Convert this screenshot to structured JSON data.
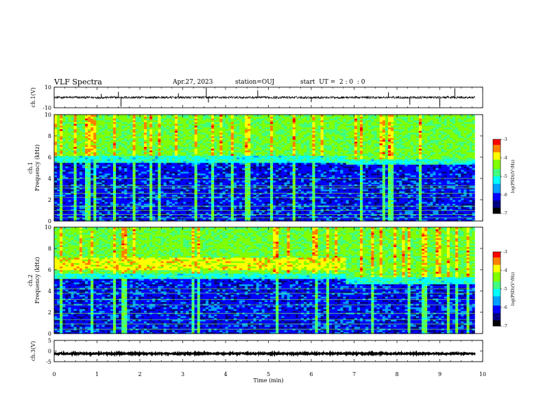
{
  "header": {
    "title": "VLF Spectra",
    "date": "Apr.27, 2023",
    "station": "station=OUJ",
    "start_ut": "start  UT =  2 : 0  : 0"
  },
  "chart_data": [
    {
      "type": "line",
      "panel": "ch1-waveform",
      "ylabel": "ch.1(V)",
      "ylim": [
        -10,
        10
      ],
      "yticks": [
        "10",
        "-10"
      ],
      "baseline": 0,
      "noise_amplitude": 1.2,
      "spikes": [
        {
          "t": 1.5,
          "y": 5.5
        },
        {
          "t": 1.56,
          "y": -9.0
        },
        {
          "t": 3.55,
          "y": 9.5
        },
        {
          "t": 3.6,
          "y": -5.0
        },
        {
          "t": 4.75,
          "y": 7.0
        },
        {
          "t": 2.9,
          "y": 4.0
        },
        {
          "t": 6.0,
          "y": -4.5
        },
        {
          "t": 8.3,
          "y": -7.0
        },
        {
          "t": 9.0,
          "y": -8.5
        },
        {
          "t": 9.35,
          "y": 9.0
        },
        {
          "t": 7.8,
          "y": 5.0
        },
        {
          "t": 1.1,
          "y": 3.5
        }
      ],
      "color": "#000000"
    },
    {
      "type": "heatmap",
      "panel": "ch1-spectrogram",
      "ylabel_line1": "ch.1",
      "ylabel_line2": "Frequency (kHz)",
      "ylim": [
        0,
        10
      ],
      "yticks": [
        "0",
        "2",
        "4",
        "6",
        "8",
        "10"
      ],
      "colorbar": {
        "label": "log(PSD)(V²/Hz)",
        "min": -7,
        "max": -3,
        "ticks": [
          "-3",
          "-4",
          "-5",
          "-6",
          "-7"
        ]
      },
      "band_edge_khz": 6.0,
      "band_edge_after_7min_khz": 5.8,
      "strong_band_khz": null,
      "horizontal_lines_khz": [
        0.3,
        0.6,
        1.0,
        1.4,
        2.2,
        2.6,
        3.1,
        3.3,
        4.0
      ]
    },
    {
      "type": "heatmap",
      "panel": "ch2-spectrogram",
      "ylabel_line1": "ch.2",
      "ylabel_line2": "Frequency (kHz)",
      "ylim": [
        0,
        10
      ],
      "yticks": [
        "0",
        "2",
        "4",
        "6",
        "8",
        "10"
      ],
      "colorbar": {
        "label": "log(PSD)(V²/Hz)",
        "min": -7,
        "max": -3,
        "ticks": [
          "-3",
          "-4",
          "-5",
          "-6",
          "-7"
        ]
      },
      "band_edge_khz": 5.6,
      "band_edge_after_7min_khz": 5.2,
      "strong_band_khz": [
        5.9,
        7.0
      ],
      "strong_band_end_min": 6.8,
      "horizontal_lines_khz": [
        0.4,
        0.9,
        1.3,
        1.9,
        2.7,
        3.2,
        3.8,
        4.2
      ]
    },
    {
      "type": "line",
      "panel": "ch3-waveform",
      "ylabel": "ch.3(V)",
      "ylim": [
        -5,
        5
      ],
      "yticks": [
        "5",
        "0",
        "-5"
      ],
      "baseline": -1.2,
      "noise_amplitude": 0.3,
      "spikes": [],
      "color": "#000000"
    }
  ],
  "xaxis": {
    "label": "Time (min)",
    "xlim": [
      0,
      10
    ],
    "ticks": [
      "0",
      "1",
      "2",
      "3",
      "4",
      "5",
      "6",
      "7",
      "8",
      "9",
      "10"
    ],
    "data_end_min": 9.82
  },
  "colormap": [
    "#000000",
    "#00007f",
    "#0000ff",
    "#00a0ff",
    "#00ffff",
    "#40ff80",
    "#80ff00",
    "#ffff00",
    "#ff8000",
    "#ff0000"
  ]
}
